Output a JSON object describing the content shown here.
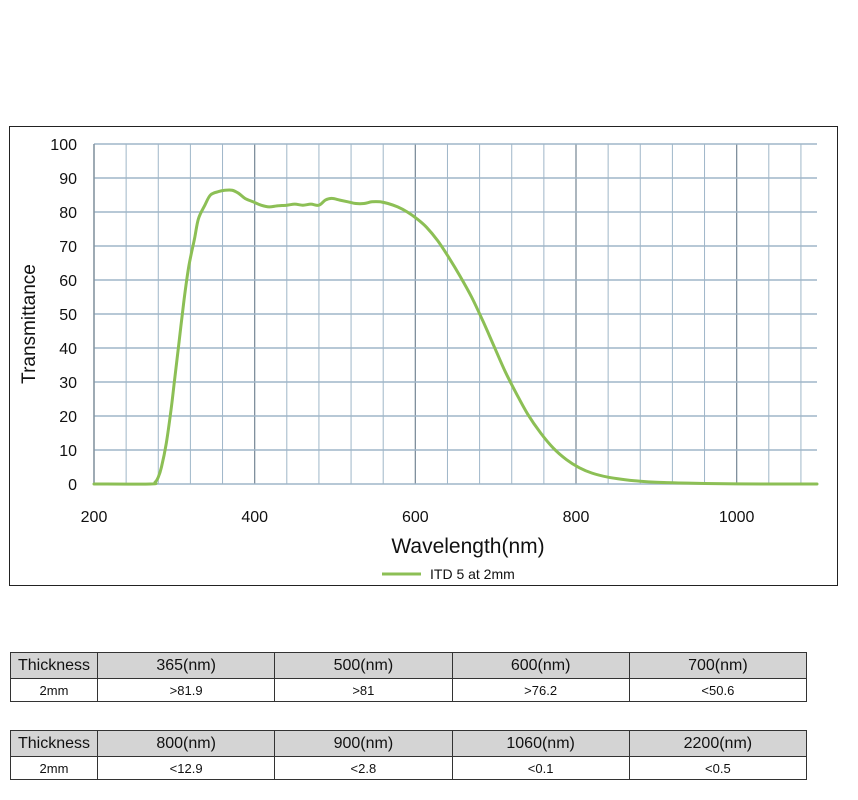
{
  "chart_data": {
    "type": "line",
    "title": "",
    "xlabel": "Wavelength(nm)",
    "ylabel": "Transmittance",
    "xlim": [
      200,
      1100
    ],
    "ylim": [
      0,
      100
    ],
    "x_ticks": [
      200,
      400,
      600,
      800,
      1000
    ],
    "x_tick_labels": [
      "200",
      "400",
      "600",
      "800",
      "1000"
    ],
    "y_ticks": [
      0,
      10,
      20,
      30,
      40,
      50,
      60,
      70,
      80,
      90,
      100
    ],
    "y_tick_labels": [
      "0",
      "10",
      "20",
      "30",
      "40",
      "50",
      "60",
      "70",
      "80",
      "90",
      "100"
    ],
    "grid": true,
    "legend_position": "bottom-center",
    "line_color": "#8cbf55",
    "grid_color": "#9fb6c8",
    "series": [
      {
        "name": "ITD 5 at 2mm",
        "x": [
          200,
          270,
          276,
          280,
          284,
          290,
          296,
          300,
          306,
          312,
          318,
          325,
          330,
          338,
          345,
          355,
          363,
          372,
          380,
          388,
          398,
          408,
          418,
          428,
          440,
          450,
          460,
          470,
          480,
          488,
          496,
          506,
          516,
          526,
          536,
          546,
          556,
          566,
          578,
          590,
          602,
          614,
          628,
          642,
          656,
          670,
          684,
          698,
          712,
          726,
          740,
          756,
          772,
          788,
          804,
          820,
          840,
          860,
          880,
          900,
          930,
          960,
          1000,
          1050,
          1100
        ],
        "y": [
          0,
          0,
          0.5,
          2,
          5,
          12,
          22,
          30,
          42,
          54,
          64,
          72,
          78,
          82,
          85,
          86,
          86.4,
          86.4,
          85.5,
          84,
          83,
          82,
          81.5,
          81.8,
          82,
          82.3,
          82,
          82.3,
          82,
          83.5,
          84,
          83.5,
          83,
          82.5,
          82.5,
          83,
          83,
          82.5,
          81.5,
          80,
          78,
          75.5,
          71.5,
          66.5,
          61,
          55,
          48,
          40.5,
          33,
          26.5,
          20.5,
          15,
          10.5,
          7.2,
          4.8,
          3.2,
          2,
          1.3,
          0.8,
          0.5,
          0.3,
          0.15,
          0.05,
          0,
          0
        ]
      }
    ]
  },
  "tables": [
    {
      "header": [
        "Thickness",
        "365(nm)",
        "500(nm)",
        "600(nm)",
        "700(nm)"
      ],
      "row": [
        "2mm",
        ">81.9",
        ">81",
        ">76.2",
        "<50.6"
      ]
    },
    {
      "header": [
        "Thickness",
        "800(nm)",
        "900(nm)",
        "1060(nm)",
        "2200(nm)"
      ],
      "row": [
        "2mm",
        "<12.9",
        "<2.8",
        "<0.1",
        "<0.5"
      ]
    }
  ]
}
